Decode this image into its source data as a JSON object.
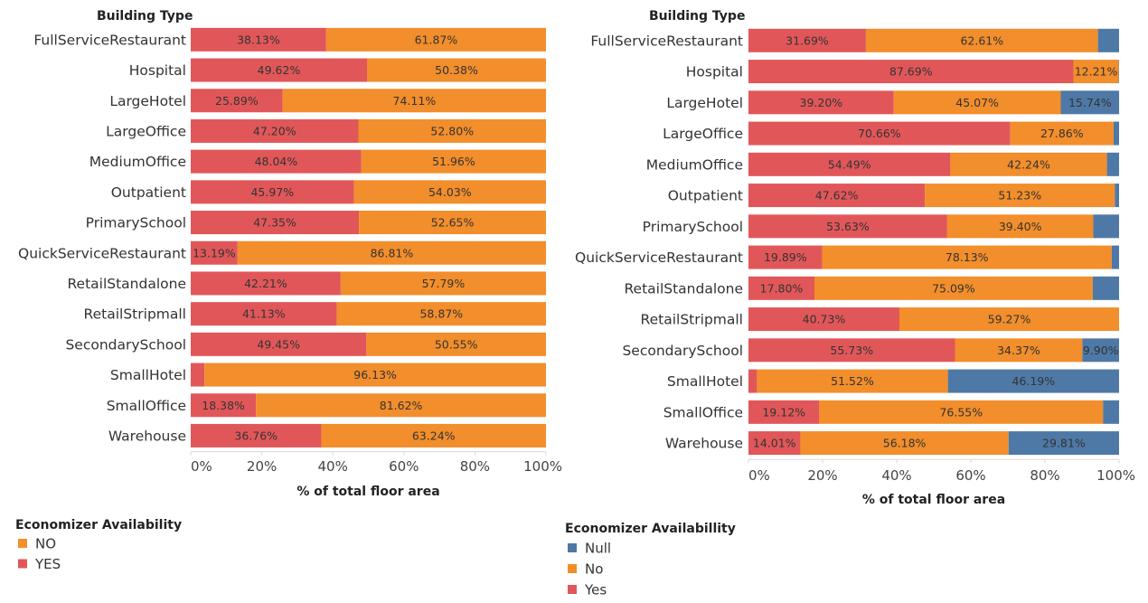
{
  "colors": {
    "yes": "#E15759",
    "no": "#F28E2B",
    "null": "#4E79A7",
    "label_text": "#333333",
    "axis_line": "#d9d9d9"
  },
  "chart_data": [
    {
      "type": "bar",
      "orientation": "horizontal",
      "stacked": "100%",
      "row_header": "Building Type",
      "xlabel": "% of total floor area",
      "xlim": [
        0,
        100
      ],
      "x_ticks": [
        "0%",
        "20%",
        "40%",
        "60%",
        "80%",
        "100%"
      ],
      "categories": [
        "FullServiceRestaurant",
        "Hospital",
        "LargeHotel",
        "LargeOffice",
        "MediumOffice",
        "Outpatient",
        "PrimarySchool",
        "QuickServiceRestaurant",
        "RetailStandalone",
        "RetailStripmall",
        "SecondarySchool",
        "SmallHotel",
        "SmallOffice",
        "Warehouse"
      ],
      "series": [
        {
          "name": "YES",
          "color_key": "yes",
          "values": [
            38.13,
            49.62,
            25.89,
            47.2,
            48.04,
            45.97,
            47.35,
            13.19,
            42.21,
            41.13,
            49.45,
            3.87,
            18.38,
            36.76
          ],
          "labels": [
            "38.13%",
            "49.62%",
            "25.89%",
            "47.20%",
            "48.04%",
            "45.97%",
            "47.35%",
            "13.19%",
            "42.21%",
            "41.13%",
            "49.45%",
            "",
            "18.38%",
            "36.76%"
          ]
        },
        {
          "name": "NO",
          "color_key": "no",
          "values": [
            61.87,
            50.38,
            74.11,
            52.8,
            51.96,
            54.03,
            52.65,
            86.81,
            57.79,
            58.87,
            50.55,
            96.13,
            81.62,
            63.24
          ],
          "labels": [
            "61.87%",
            "50.38%",
            "74.11%",
            "52.80%",
            "51.96%",
            "54.03%",
            "52.65%",
            "86.81%",
            "57.79%",
            "58.87%",
            "50.55%",
            "96.13%",
            "81.62%",
            "63.24%"
          ]
        }
      ],
      "legend": {
        "title": "Economizer Availability",
        "items": [
          {
            "label": "NO",
            "color_key": "no"
          },
          {
            "label": "YES",
            "color_key": "yes"
          }
        ]
      }
    },
    {
      "type": "bar",
      "orientation": "horizontal",
      "stacked": "100%",
      "row_header": "Building Type",
      "xlabel": "% of total floor area",
      "xlim": [
        0,
        100
      ],
      "x_ticks": [
        "0%",
        "20%",
        "40%",
        "60%",
        "80%",
        "100%"
      ],
      "categories": [
        "FullServiceRestaurant",
        "Hospital",
        "LargeHotel",
        "LargeOffice",
        "MediumOffice",
        "Outpatient",
        "PrimarySchool",
        "QuickServiceRestaurant",
        "RetailStandalone",
        "RetailStripmall",
        "SecondarySchool",
        "SmallHotel",
        "SmallOffice",
        "Warehouse"
      ],
      "series": [
        {
          "name": "Yes",
          "color_key": "yes",
          "values": [
            31.69,
            87.69,
            39.2,
            70.66,
            54.49,
            47.62,
            53.63,
            19.89,
            17.8,
            40.73,
            55.73,
            2.29,
            19.12,
            14.01
          ],
          "labels": [
            "31.69%",
            "87.69%",
            "39.20%",
            "70.66%",
            "54.49%",
            "47.62%",
            "53.63%",
            "19.89%",
            "17.80%",
            "40.73%",
            "55.73%",
            "",
            "19.12%",
            "14.01%"
          ]
        },
        {
          "name": "No",
          "color_key": "no",
          "values": [
            62.61,
            12.21,
            45.07,
            27.86,
            42.24,
            51.23,
            39.4,
            78.13,
            75.09,
            59.27,
            34.37,
            51.52,
            76.55,
            56.18
          ],
          "labels": [
            "62.61%",
            "12.21%",
            "45.07%",
            "27.86%",
            "42.24%",
            "51.23%",
            "39.40%",
            "78.13%",
            "75.09%",
            "59.27%",
            "34.37%",
            "51.52%",
            "76.55%",
            "56.18%"
          ]
        },
        {
          "name": "Null",
          "color_key": "null",
          "values": [
            5.7,
            0.1,
            15.74,
            1.48,
            3.27,
            1.15,
            6.97,
            1.98,
            7.11,
            0.0,
            9.9,
            46.19,
            4.33,
            29.81
          ],
          "labels": [
            "",
            "",
            "15.74%",
            "",
            "",
            "",
            "",
            "",
            "",
            "",
            "9.90%",
            "46.19%",
            "",
            "29.81%"
          ]
        }
      ],
      "legend": {
        "title": "Economizer Availabillity",
        "items": [
          {
            "label": "Null",
            "color_key": "null"
          },
          {
            "label": "No",
            "color_key": "no"
          },
          {
            "label": "Yes",
            "color_key": "yes"
          }
        ]
      }
    }
  ]
}
